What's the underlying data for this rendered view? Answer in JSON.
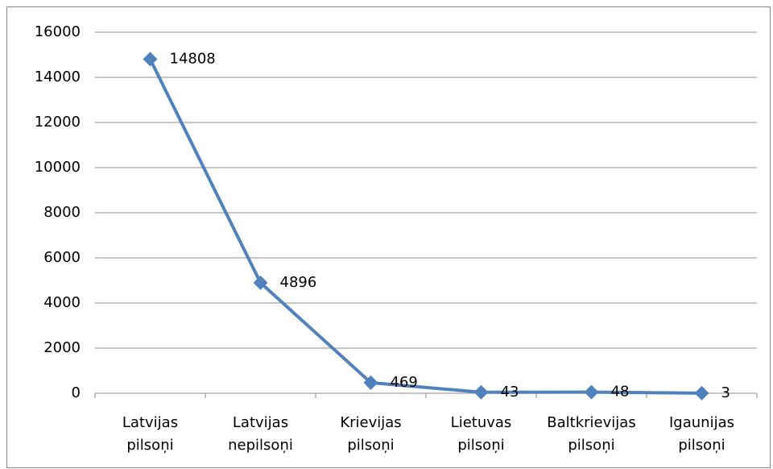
{
  "chart_data": {
    "type": "line",
    "categories": [
      "Latvijas pilsoņi",
      "Latvijas nepilsoņi",
      "Krievijas pilsoņi",
      "Lietuvas pilsoņi",
      "Baltkrievijas pilsoņi",
      "Igaunijas pilsoņi"
    ],
    "series": [
      {
        "color": "#4f81bd",
        "values": [
          14808,
          4896,
          469,
          43,
          48,
          3
        ]
      }
    ],
    "ylim": [
      0,
      16000
    ],
    "yticks": [
      0,
      2000,
      4000,
      6000,
      8000,
      10000,
      12000,
      14000,
      16000
    ],
    "grid": true
  }
}
